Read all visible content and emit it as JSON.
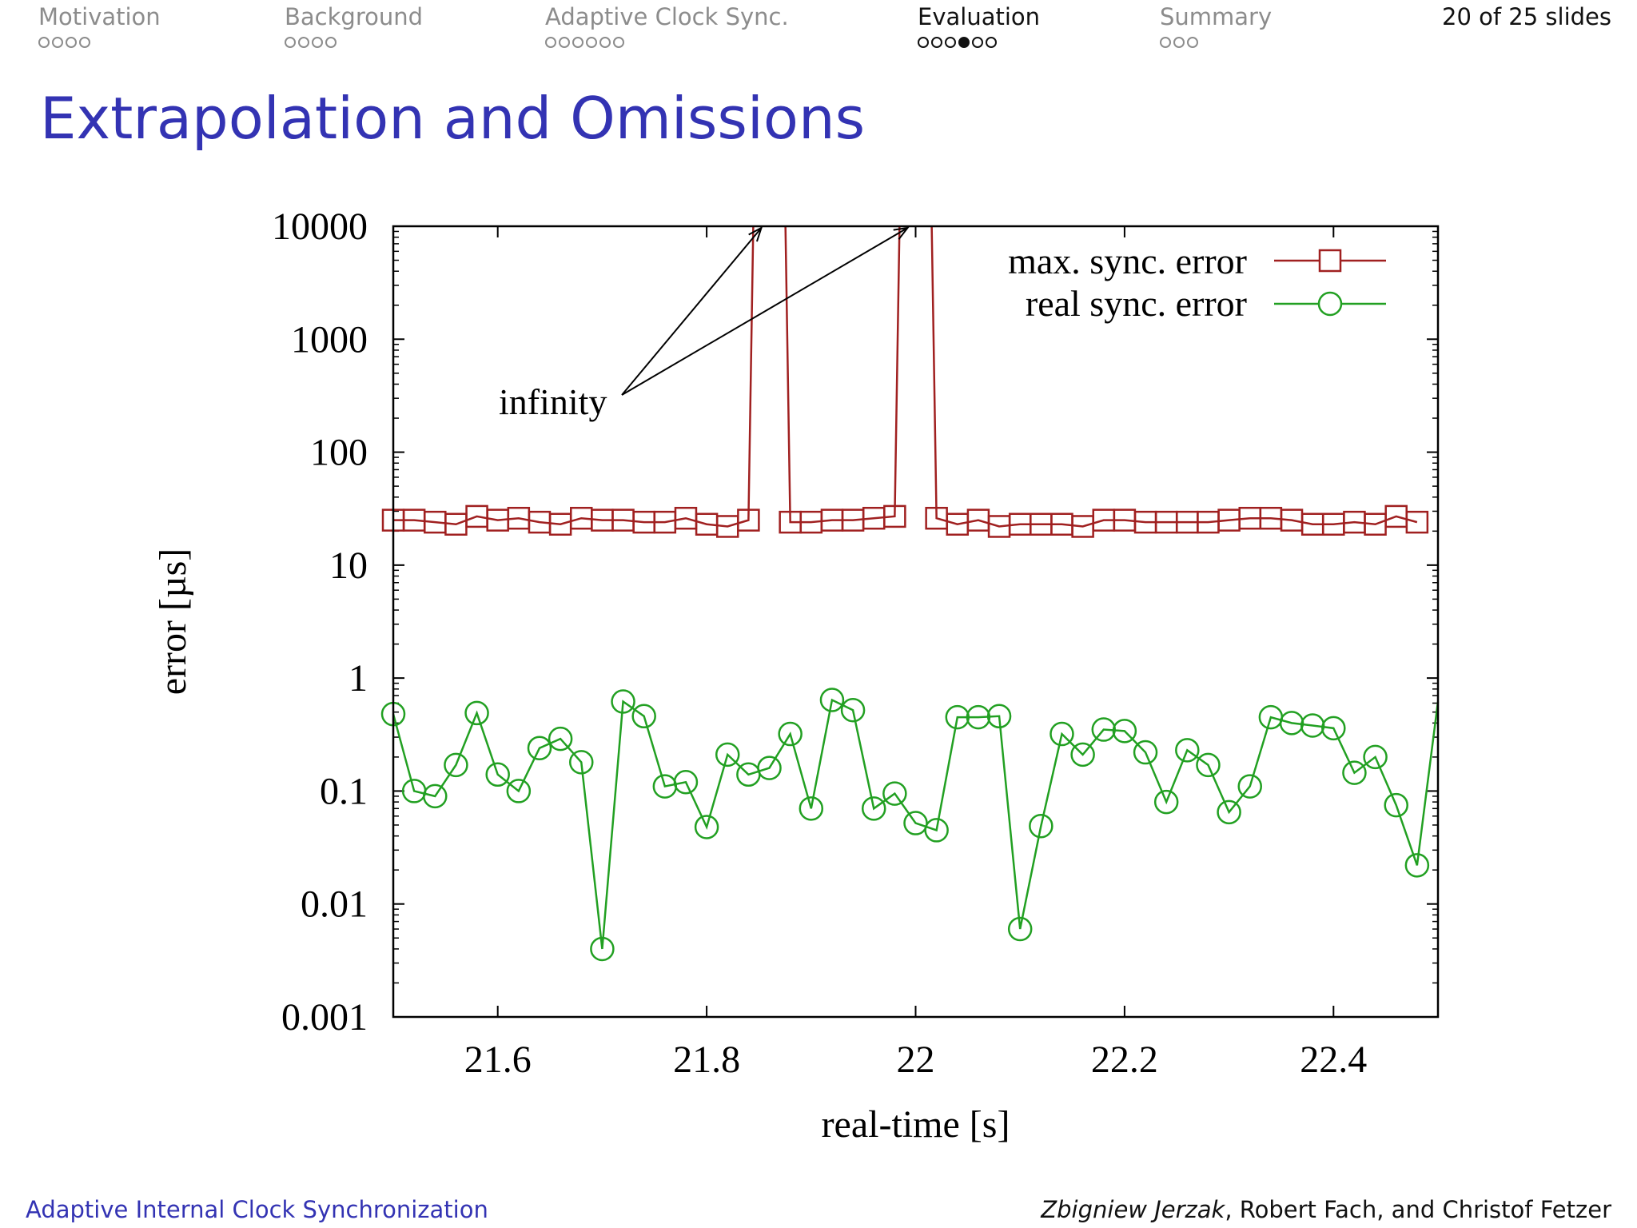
{
  "nav": {
    "sections": [
      {
        "label": "Motivation",
        "dots": 4,
        "filled": -1,
        "active": false
      },
      {
        "label": "Background",
        "dots": 4,
        "filled": -1,
        "active": false
      },
      {
        "label": "Adaptive Clock Sync.",
        "dots": 6,
        "filled": -1,
        "active": false
      },
      {
        "label": "Evaluation",
        "dots": 6,
        "filled": 3,
        "active": true
      },
      {
        "label": "Summary",
        "dots": 3,
        "filled": -1,
        "active": false
      }
    ],
    "counter": "20 of 25 slides"
  },
  "slide": {
    "title": "Extrapolation and Omissions"
  },
  "footer": {
    "left": "Adaptive Internal Clock Synchronization",
    "authors_lead": "Zbigniew Jerzak",
    "authors_rest": ", Robert Fach, and Christof Fetzer"
  },
  "chart_data": {
    "type": "line",
    "xlabel": "real-time [s]",
    "ylabel": "error [µs]",
    "xlim": [
      21.5,
      22.5
    ],
    "ylim": [
      0.001,
      10000
    ],
    "yscale": "log",
    "x_ticks": [
      "21.6",
      "21.8",
      "22",
      "22.2",
      "22.4"
    ],
    "y_ticks": [
      "0.001",
      "0.01",
      "0.1",
      "1",
      "10",
      "100",
      "1000",
      "10000"
    ],
    "legend_position": "top-right",
    "annotation": "infinity",
    "colors": {
      "max": "#a02020",
      "real": "#22a022"
    },
    "series": [
      {
        "name": "max. sync. error",
        "marker": "square",
        "points": [
          [
            21.5,
            25
          ],
          [
            21.52,
            25
          ],
          [
            21.54,
            24
          ],
          [
            21.56,
            23
          ],
          [
            21.58,
            27
          ],
          [
            21.6,
            25
          ],
          [
            21.62,
            26
          ],
          [
            21.64,
            24
          ],
          [
            21.66,
            23
          ],
          [
            21.68,
            26
          ],
          [
            21.7,
            25
          ],
          [
            21.72,
            25
          ],
          [
            21.74,
            24
          ],
          [
            21.76,
            24
          ],
          [
            21.78,
            26
          ],
          [
            21.8,
            23
          ],
          [
            21.82,
            22
          ],
          [
            21.84,
            25
          ],
          [
            21.88,
            24
          ],
          [
            21.9,
            24
          ],
          [
            21.92,
            25
          ],
          [
            21.94,
            25
          ],
          [
            21.96,
            26
          ],
          [
            21.98,
            27
          ],
          [
            22.02,
            26
          ],
          [
            22.04,
            23
          ],
          [
            22.06,
            25
          ],
          [
            22.08,
            22
          ],
          [
            22.1,
            23
          ],
          [
            22.12,
            23
          ],
          [
            22.14,
            23
          ],
          [
            22.16,
            22
          ],
          [
            22.18,
            25
          ],
          [
            22.2,
            25
          ],
          [
            22.22,
            24
          ],
          [
            22.24,
            24
          ],
          [
            22.26,
            24
          ],
          [
            22.28,
            24
          ],
          [
            22.3,
            25
          ],
          [
            22.32,
            26
          ],
          [
            22.34,
            26
          ],
          [
            22.36,
            25
          ],
          [
            22.38,
            23
          ],
          [
            22.4,
            23
          ],
          [
            22.42,
            24
          ],
          [
            22.44,
            23
          ],
          [
            22.46,
            27
          ],
          [
            22.48,
            24
          ]
        ],
        "infinity_segments": [
          [
            21.84,
            21.88
          ],
          [
            21.98,
            22.02
          ]
        ]
      },
      {
        "name": "real sync. error",
        "marker": "circle",
        "points": [
          [
            21.5,
            0.48
          ],
          [
            21.52,
            0.1
          ],
          [
            21.54,
            0.09
          ],
          [
            21.56,
            0.17
          ],
          [
            21.58,
            0.49
          ],
          [
            21.6,
            0.14
          ],
          [
            21.62,
            0.1
          ],
          [
            21.64,
            0.24
          ],
          [
            21.66,
            0.29
          ],
          [
            21.68,
            0.18
          ],
          [
            21.7,
            0.004
          ],
          [
            21.72,
            0.62
          ],
          [
            21.74,
            0.46
          ],
          [
            21.76,
            0.11
          ],
          [
            21.78,
            0.12
          ],
          [
            21.8,
            0.048
          ],
          [
            21.82,
            0.21
          ],
          [
            21.84,
            0.14
          ],
          [
            21.86,
            0.16
          ],
          [
            21.88,
            0.32
          ],
          [
            21.9,
            0.07
          ],
          [
            21.92,
            0.64
          ],
          [
            21.94,
            0.52
          ],
          [
            21.96,
            0.07
          ],
          [
            21.98,
            0.095
          ],
          [
            22.0,
            0.052
          ],
          [
            22.02,
            0.045
          ],
          [
            22.04,
            0.45
          ],
          [
            22.06,
            0.45
          ],
          [
            22.08,
            0.46
          ],
          [
            22.1,
            0.006
          ],
          [
            22.12,
            0.049
          ],
          [
            22.14,
            0.32
          ],
          [
            22.16,
            0.21
          ],
          [
            22.18,
            0.35
          ],
          [
            22.2,
            0.34
          ],
          [
            22.22,
            0.22
          ],
          [
            22.24,
            0.08
          ],
          [
            22.26,
            0.23
          ],
          [
            22.28,
            0.17
          ],
          [
            22.3,
            0.065
          ],
          [
            22.32,
            0.11
          ],
          [
            22.34,
            0.45
          ],
          [
            22.36,
            0.4
          ],
          [
            22.38,
            0.38
          ],
          [
            22.4,
            0.36
          ],
          [
            22.42,
            0.145
          ],
          [
            22.44,
            0.2
          ],
          [
            22.46,
            0.075
          ],
          [
            22.48,
            0.022
          ],
          [
            22.5,
            0.62
          ]
        ]
      }
    ]
  }
}
